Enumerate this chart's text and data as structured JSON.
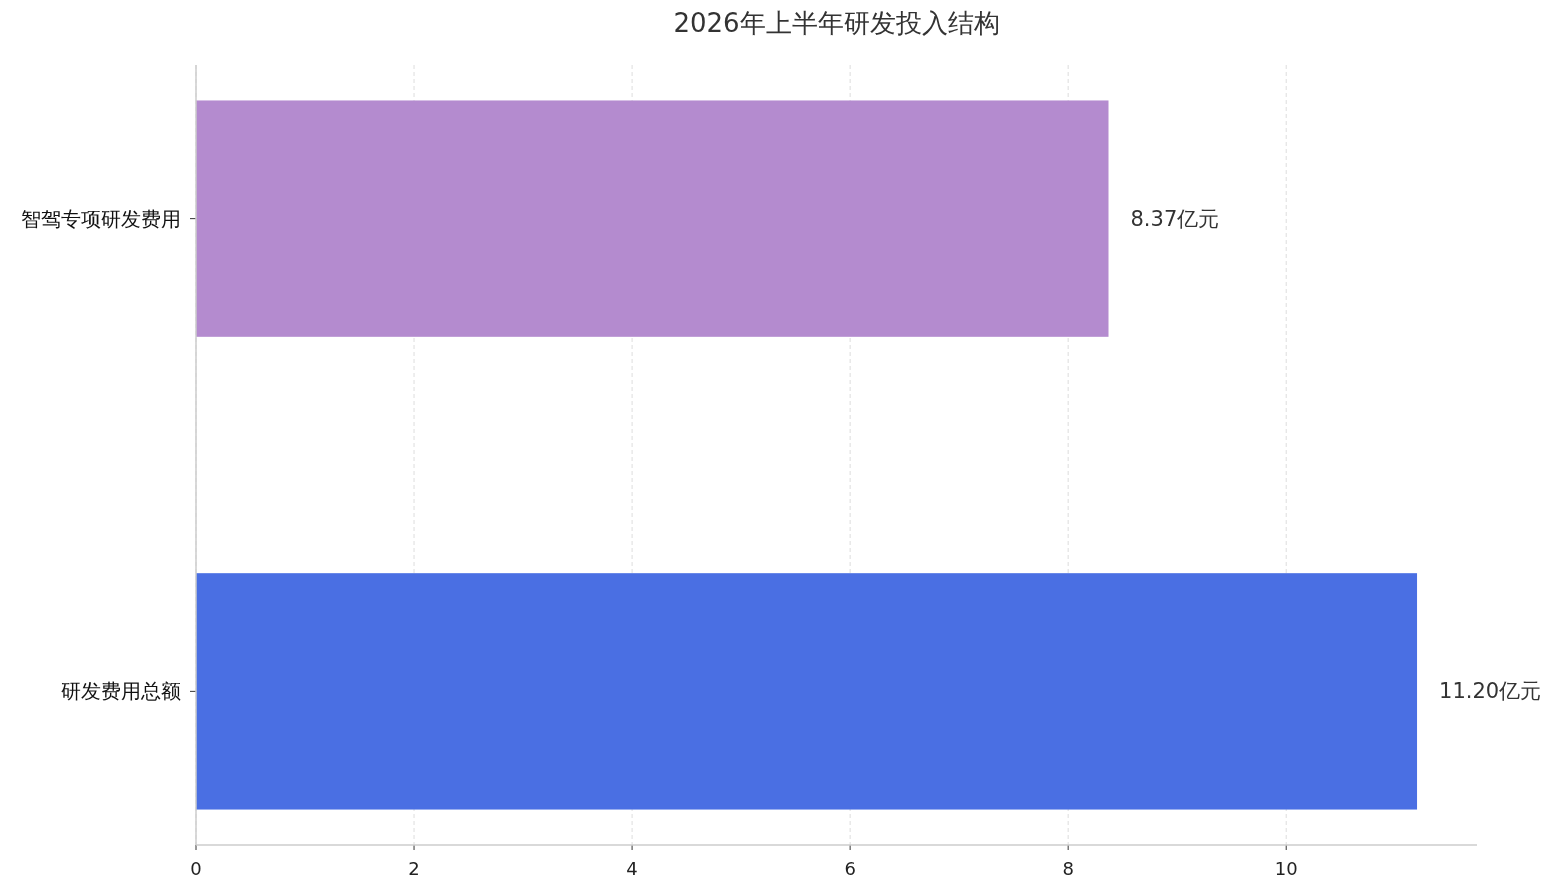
{
  "chart_data": {
    "type": "bar",
    "orientation": "horizontal",
    "title": "2026年上半年研发投入结构",
    "categories": [
      "智驾专项研发费用",
      "研发费用总额"
    ],
    "values": [
      8.37,
      11.2
    ],
    "colors": [
      "#b48bcf",
      "#4a6fe3"
    ],
    "value_labels": [
      "8.37亿元",
      "11.20亿元"
    ],
    "xlim": [
      0,
      11.75
    ],
    "xticks": [
      0,
      2,
      4,
      6,
      8,
      10
    ],
    "grid": "x"
  }
}
